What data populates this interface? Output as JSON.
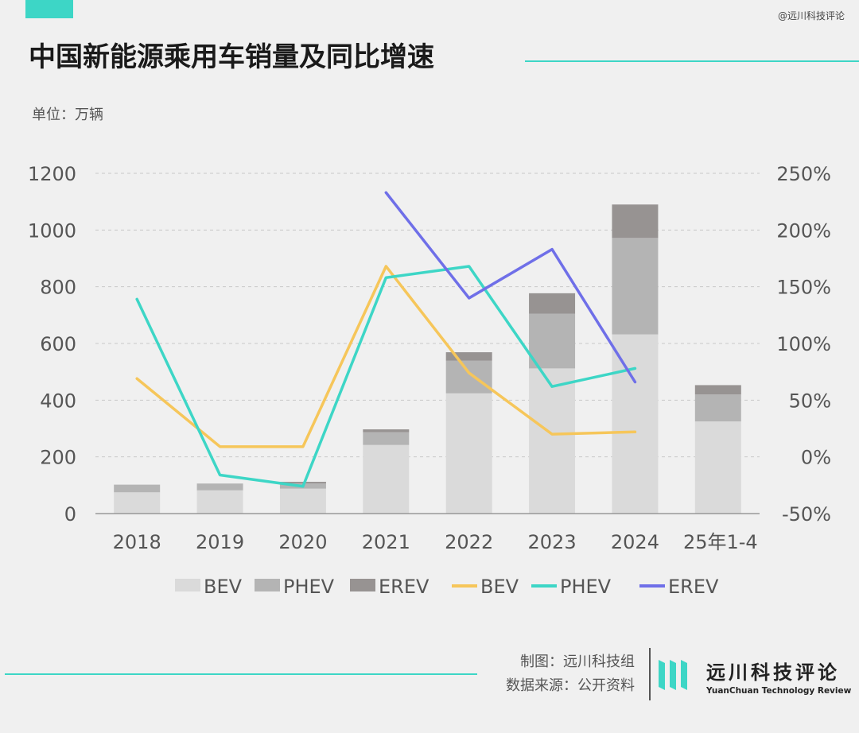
{
  "header": {
    "title": "中国新能源乘用车销量及同比增速",
    "unit": "单位：万辆",
    "watermark": "@远川科技评论"
  },
  "footer": {
    "credit_maker": "制图：远川科技组",
    "credit_source": "数据来源：公开资料",
    "brand_cn": "远川科技评论",
    "brand_en": "YuanChuan Technology Review"
  },
  "colors": {
    "bev_bar": "#dadada",
    "phev_bar": "#b4b4b4",
    "erev_bar": "#979392",
    "bev_line": "#f6c65a",
    "phev_line": "#3dd6c6",
    "erev_line": "#6f6fe8",
    "accent": "#3dd6c6"
  },
  "chart_data": {
    "type": "bar",
    "categories": [
      "2018",
      "2019",
      "2020",
      "2021",
      "2022",
      "2023",
      "2024",
      "25年1-4"
    ],
    "y_left": {
      "ticks": [
        "0",
        "200",
        "400",
        "600",
        "800",
        "1000",
        "1200"
      ],
      "lim": [
        0,
        1200
      ]
    },
    "y_right": {
      "ticks": [
        "-50%",
        "0%",
        "50%",
        "100%",
        "150%",
        "200%",
        "250%"
      ],
      "lim": [
        -50,
        250
      ]
    },
    "grid": true,
    "legend_position": "bottom",
    "bar_series": [
      {
        "name": "BEV",
        "values": [
          75,
          82,
          88,
          242,
          424,
          512,
          632,
          325
        ]
      },
      {
        "name": "PHEV",
        "values": [
          27,
          24,
          18,
          45,
          115,
          193,
          340,
          95
        ]
      },
      {
        "name": "EREV",
        "values": [
          0,
          0,
          6,
          10,
          30,
          72,
          118,
          33
        ]
      }
    ],
    "line_series": [
      {
        "name": "BEV",
        "values": [
          69,
          9,
          9,
          168,
          74,
          20,
          22,
          null
        ]
      },
      {
        "name": "PHEV",
        "values": [
          139,
          -16,
          -26,
          158,
          168,
          62,
          78,
          null
        ]
      },
      {
        "name": "EREV",
        "values": [
          null,
          null,
          null,
          233,
          140,
          183,
          66,
          null
        ]
      }
    ]
  }
}
